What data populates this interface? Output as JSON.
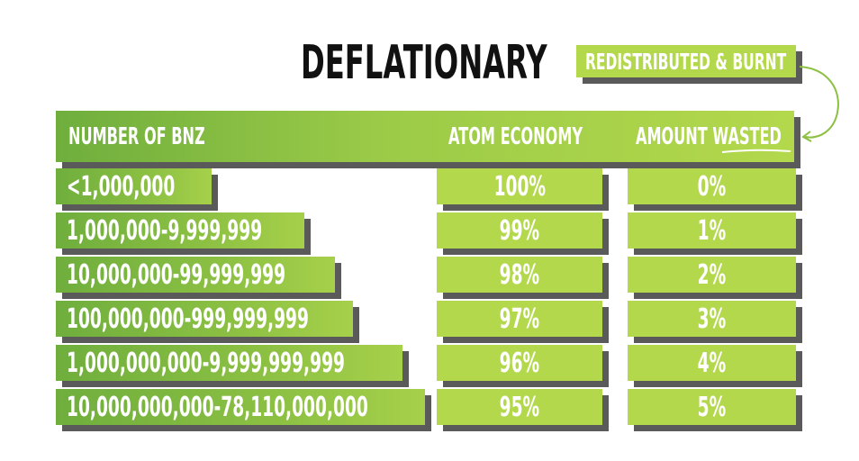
{
  "title": "DEFLATIONARY",
  "tag": "REDISTRIBUTED & BURNT",
  "header": {
    "col1": "NUMBER OF BNZ",
    "col2": "ATOM ECONOMY",
    "col3": "AMOUNT WASTED"
  },
  "rows": [
    {
      "range": "<1,000,000",
      "economy": "100%",
      "wasted": "0%"
    },
    {
      "range": "1,000,000-9,999,999",
      "economy": "99%",
      "wasted": "1%"
    },
    {
      "range": "10,000,000-99,999,999",
      "economy": "98%",
      "wasted": "2%"
    },
    {
      "range": "100,000,000-999,999,999",
      "economy": "97%",
      "wasted": "3%"
    },
    {
      "range": "1,000,000,000-9,999,999,999",
      "economy": "96%",
      "wasted": "4%"
    },
    {
      "range": "10,000,000,000-78,110,000,000",
      "economy": "95%",
      "wasted": "5%"
    }
  ],
  "colors": {
    "light_green": "#b3d84c",
    "dark_green": "#6fae3d",
    "shadow": "#5a5a5a"
  }
}
